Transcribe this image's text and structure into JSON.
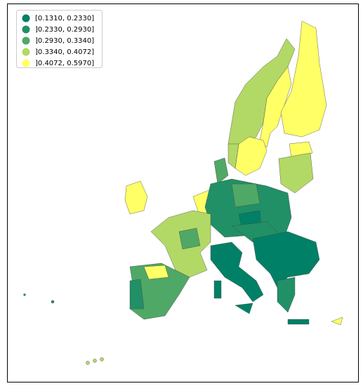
{
  "legend": {
    "items": [
      {
        "label": "[0.1310, 0.2330]",
        "color": "#008066"
      },
      {
        "label": "]0.2330, 0.2930]",
        "color": "#219066"
      },
      {
        "label": "]0.2930, 0.3340]",
        "color": "#4fa866"
      },
      {
        "label": "]0.3340, 0.4072]",
        "color": "#b2d966"
      },
      {
        "label": "]0.4072, 0.5970]",
        "color": "#ffff66"
      }
    ]
  }
}
